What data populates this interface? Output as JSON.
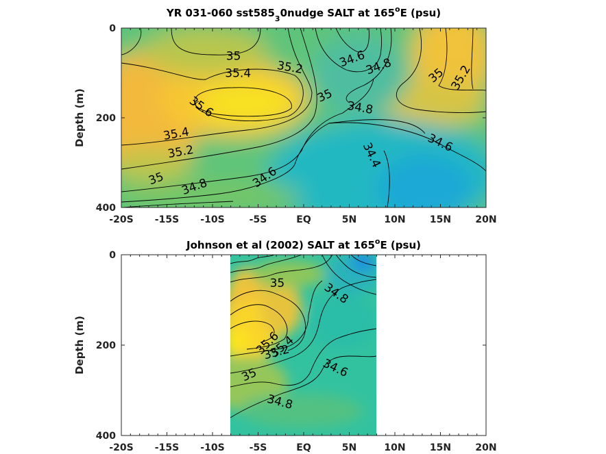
{
  "chart_data": [
    {
      "type": "heatmap",
      "title_prefix": "YR 031-060 sst585",
      "title_sub": "3",
      "title_mid": "0nudge SALT at 165",
      "title_sup": "o",
      "title_suffix": "E (psu)",
      "ylabel": "Depth (m)",
      "x_tick_labels": [
        "-20S",
        "-15S",
        "-10S",
        "-5S",
        "EQ",
        "5N",
        "10N",
        "15N",
        "20N"
      ],
      "y_tick_labels": [
        "0",
        "200",
        "400"
      ],
      "xlim": [
        -20,
        20
      ],
      "ylim": [
        400,
        0
      ],
      "contour_levels": [
        34.4,
        34.6,
        34.8,
        35.0,
        35.2,
        35.4,
        35.6
      ],
      "contour_labels": [
        {
          "text": "35",
          "lat": -7.7,
          "depth": 62,
          "angle": 0
        },
        {
          "text": "35.4",
          "lat": -7.2,
          "depth": 100,
          "angle": 0
        },
        {
          "text": "35.2",
          "lat": -1.5,
          "depth": 87,
          "angle": 10
        },
        {
          "text": "35.6",
          "lat": -11.2,
          "depth": 175,
          "angle": 35
        },
        {
          "text": "34.6",
          "lat": 5.3,
          "depth": 68,
          "angle": -20
        },
        {
          "text": "34.8",
          "lat": 8.2,
          "depth": 85,
          "angle": -20
        },
        {
          "text": "35",
          "lat": 14.5,
          "depth": 105,
          "angle": -40
        },
        {
          "text": "35.2",
          "lat": 17.2,
          "depth": 110,
          "angle": -60
        },
        {
          "text": "35",
          "lat": 2.3,
          "depth": 150,
          "angle": -25
        },
        {
          "text": "34.8",
          "lat": 6.2,
          "depth": 177,
          "angle": 10
        },
        {
          "text": "35.4",
          "lat": -14,
          "depth": 235,
          "angle": -10
        },
        {
          "text": "35.2",
          "lat": -13.5,
          "depth": 275,
          "angle": -10
        },
        {
          "text": "35",
          "lat": -16.2,
          "depth": 335,
          "angle": -20
        },
        {
          "text": "34.8",
          "lat": -12,
          "depth": 353,
          "angle": -20
        },
        {
          "text": "34.6",
          "lat": -4.3,
          "depth": 332,
          "angle": -35
        },
        {
          "text": "34.6",
          "lat": 15,
          "depth": 255,
          "angle": 25
        },
        {
          "text": "34.4",
          "lat": 7.5,
          "depth": 283,
          "angle": 65
        }
      ],
      "colorscale": "parula",
      "grid": false
    },
    {
      "type": "heatmap",
      "title_prefix": "Johnson et al (2002) SALT at 165",
      "title_sup": "o",
      "title_suffix": "E (psu)",
      "ylabel": "Depth (m)",
      "x_tick_labels": [
        "-20S",
        "-15S",
        "-10S",
        "-5S",
        "EQ",
        "5N",
        "10N",
        "15N",
        "20N"
      ],
      "y_tick_labels": [
        "0",
        "200",
        "400"
      ],
      "xlim": [
        -20,
        20
      ],
      "ylim": [
        400,
        0
      ],
      "data_lat_range": [
        -8,
        8
      ],
      "contour_labels": [
        {
          "text": "35",
          "lat": -2.9,
          "depth": 62,
          "angle": 0
        },
        {
          "text": "34.8",
          "lat": 3.6,
          "depth": 85,
          "angle": 35
        },
        {
          "text": "35.6",
          "lat": -4,
          "depth": 195,
          "angle": -45
        },
        {
          "text": "35.4",
          "lat": -2.4,
          "depth": 203,
          "angle": -40
        },
        {
          "text": "35.2",
          "lat": -3,
          "depth": 215,
          "angle": -15
        },
        {
          "text": "34.6",
          "lat": 3.5,
          "depth": 250,
          "angle": 25
        },
        {
          "text": "35",
          "lat": -6,
          "depth": 265,
          "angle": -25
        },
        {
          "text": "34.8",
          "lat": -2.6,
          "depth": 325,
          "angle": 15
        }
      ],
      "colorscale": "parula",
      "grid": false
    }
  ]
}
